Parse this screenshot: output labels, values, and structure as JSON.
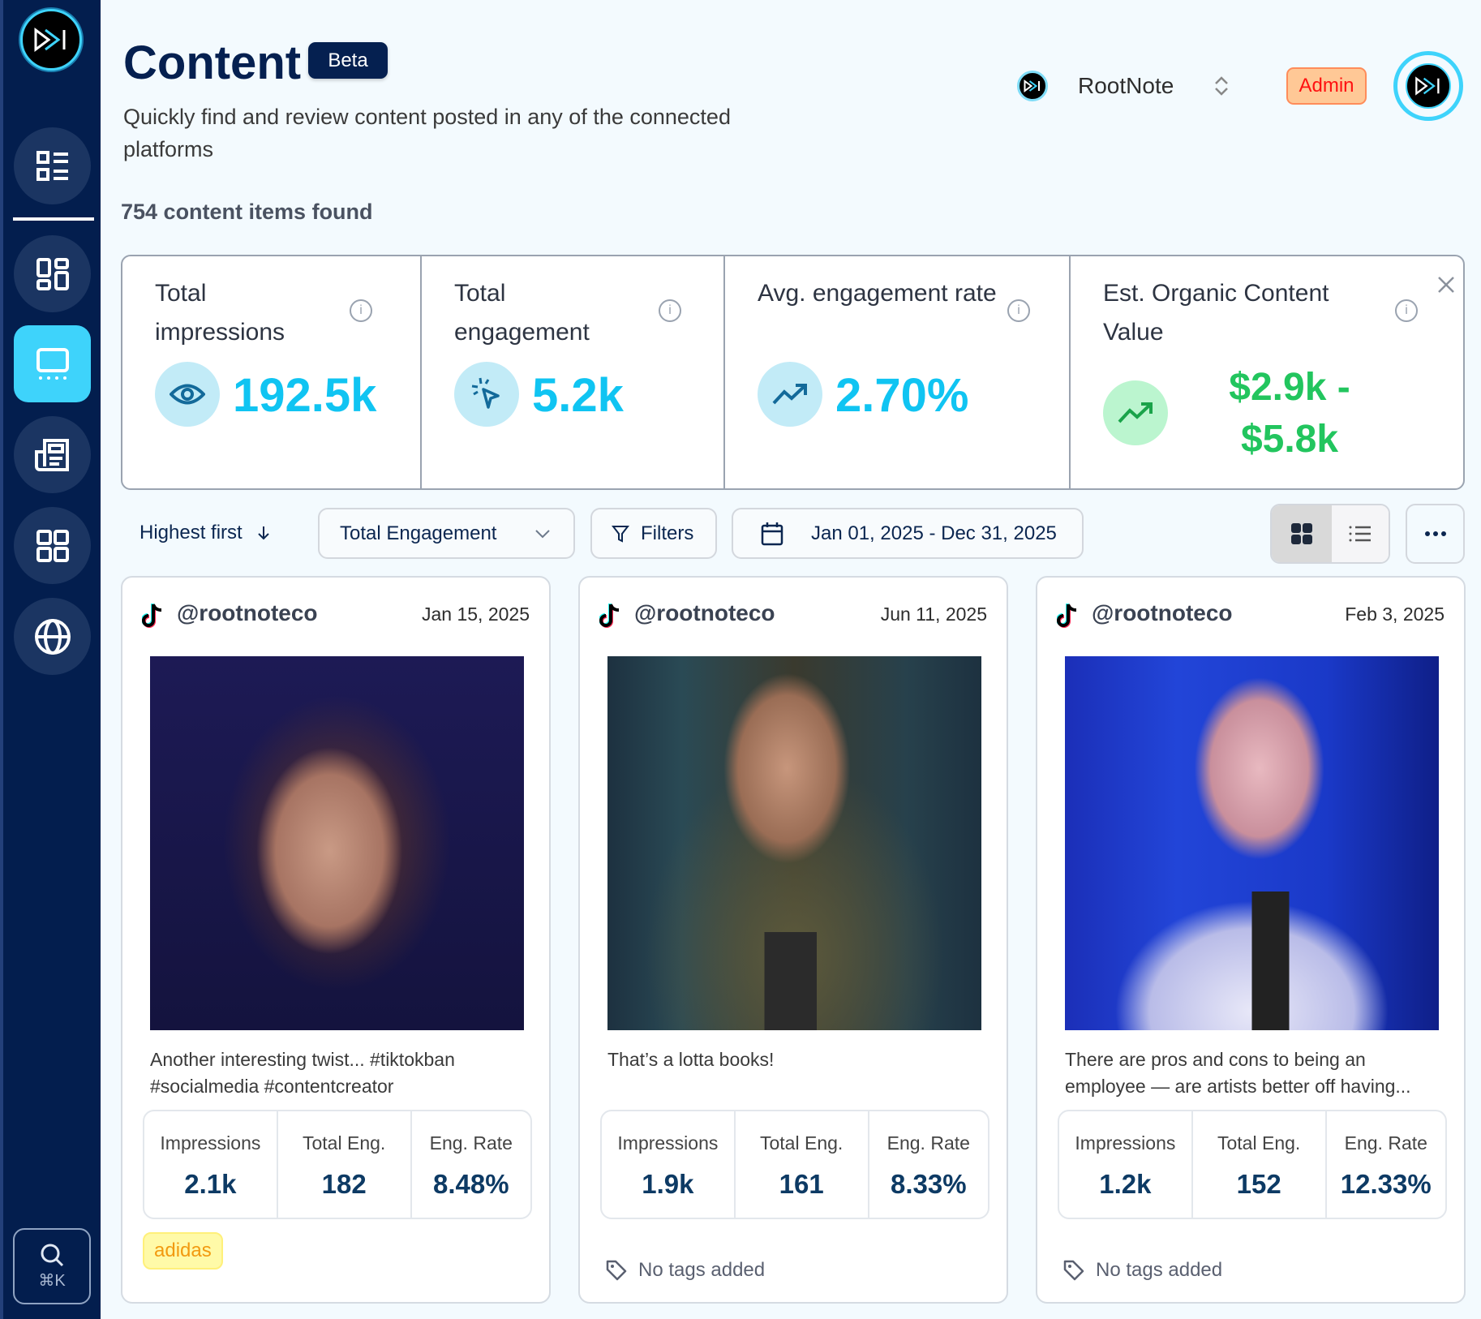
{
  "header": {
    "title": "Content",
    "badge": "Beta",
    "subtitle": "Quickly find and review content posted in any of the connected platforms",
    "count": "754 content items found",
    "workspace": "RootNote",
    "role": "Admin"
  },
  "sidebar": {
    "items": [
      {
        "icon": "list-icon"
      },
      {
        "icon": "dashboard-icon"
      },
      {
        "icon": "content-icon",
        "active": true
      },
      {
        "icon": "newspaper-icon"
      },
      {
        "icon": "apps-icon"
      },
      {
        "icon": "globe-icon"
      }
    ],
    "search_shortcut": "⌘K"
  },
  "stats": [
    {
      "label": "Total impressions",
      "value": "192.5k",
      "icon": "eye-icon"
    },
    {
      "label": "Total engagement",
      "value": "5.2k",
      "icon": "click-icon"
    },
    {
      "label": "Avg. engagement rate",
      "value": "2.70%",
      "icon": "trending-up-icon"
    },
    {
      "label": "Est. Organic Content Value",
      "value": "$2.9k - $5.8k",
      "icon": "trending-up-icon"
    }
  ],
  "toolbar": {
    "sort_order": "Highest first",
    "sort_metric": "Total Engagement",
    "filters": "Filters",
    "date_range": "Jan 01, 2025 - Dec 31, 2025",
    "view": "grid"
  },
  "colors": {
    "sidebar": "#031e4e",
    "accent": "#10c4f2",
    "positive": "#22c55e",
    "navy": "#052050"
  },
  "cards": [
    {
      "platform": "tiktok",
      "handle": "@rootnoteco",
      "date": "Jan 15, 2025",
      "caption_1": "Another interesting twist... #tiktokban",
      "caption_2": "#socialmedia #contentcreator",
      "labels": [
        "Impressions",
        "Total Eng.",
        "Eng. Rate"
      ],
      "values": [
        "2.1k",
        "182",
        "8.48%"
      ],
      "tag": "adidas"
    },
    {
      "platform": "tiktok",
      "handle": "@rootnoteco",
      "date": "Jun 11, 2025",
      "caption_1": "That’s a lotta books!",
      "caption_2": "",
      "labels": [
        "Impressions",
        "Total Eng.",
        "Eng. Rate"
      ],
      "values": [
        "1.9k",
        "161",
        "8.33%"
      ],
      "no_tags": "No tags added"
    },
    {
      "platform": "tiktok",
      "handle": "@rootnoteco",
      "date": "Feb 3, 2025",
      "caption_1": "There are pros and cons to being an",
      "caption_2": "employee — are artists better off having...",
      "labels": [
        "Impressions",
        "Total Eng.",
        "Eng. Rate"
      ],
      "values": [
        "1.2k",
        "152",
        "12.33%"
      ],
      "no_tags": "No tags added"
    }
  ]
}
